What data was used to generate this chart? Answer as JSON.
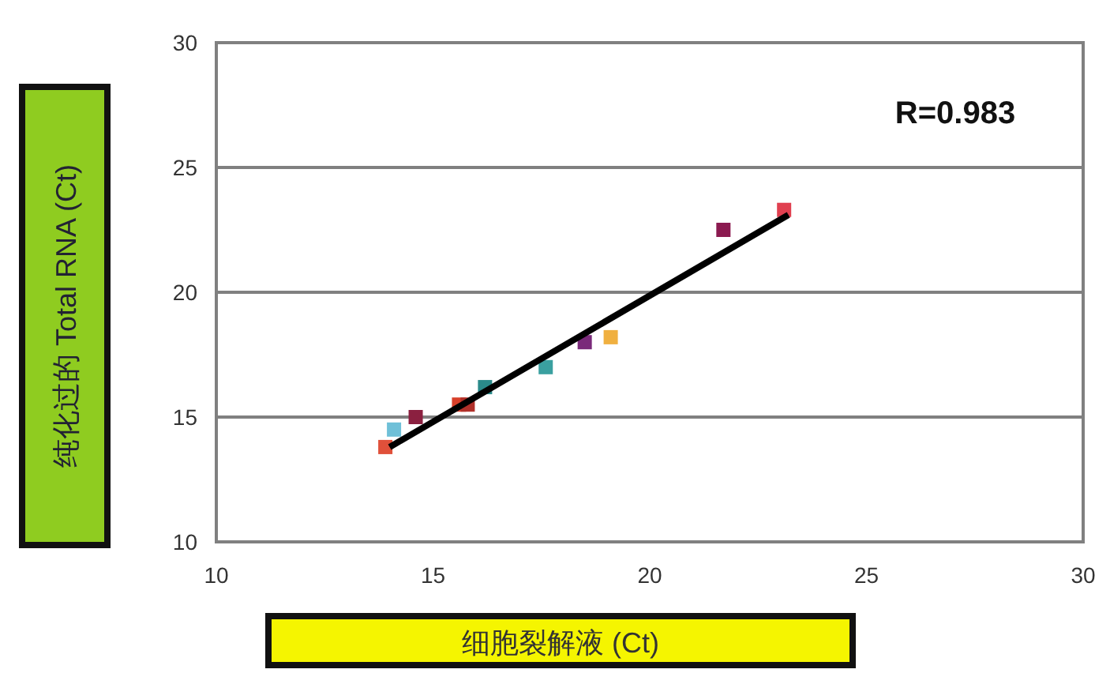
{
  "chart_data": {
    "type": "scatter",
    "xlabel": "细胞裂解液 (Ct)",
    "ylabel": "纯化过的 Total RNA (Ct)",
    "xlim": [
      10,
      30
    ],
    "ylim": [
      10,
      30
    ],
    "xticks": [
      10,
      15,
      20,
      25,
      30
    ],
    "yticks": [
      10,
      15,
      20,
      25,
      30
    ],
    "grid": "y",
    "annotations": [
      "R=0.983"
    ],
    "series": [
      {
        "marker": "square",
        "x": [
          13.9,
          14.1,
          14.6,
          15.6,
          15.8,
          16.2,
          17.6,
          18.5,
          19.1,
          21.7,
          23.1
        ],
        "values": [
          13.8,
          14.5,
          15.0,
          15.5,
          15.5,
          16.2,
          17.0,
          18.0,
          18.2,
          22.5,
          23.3
        ],
        "colors": [
          "#e0503a",
          "#6fc0d8",
          "#8b2040",
          "#d8402a",
          "#b0302a",
          "#2a8a8a",
          "#3aa0a0",
          "#7a2a7a",
          "#f0b040",
          "#8b1a50",
          "#e04050"
        ]
      },
      {
        "type": "line",
        "x": [
          14.0,
          23.2
        ],
        "values": [
          13.8,
          23.1
        ],
        "color": "#000000"
      }
    ]
  }
}
